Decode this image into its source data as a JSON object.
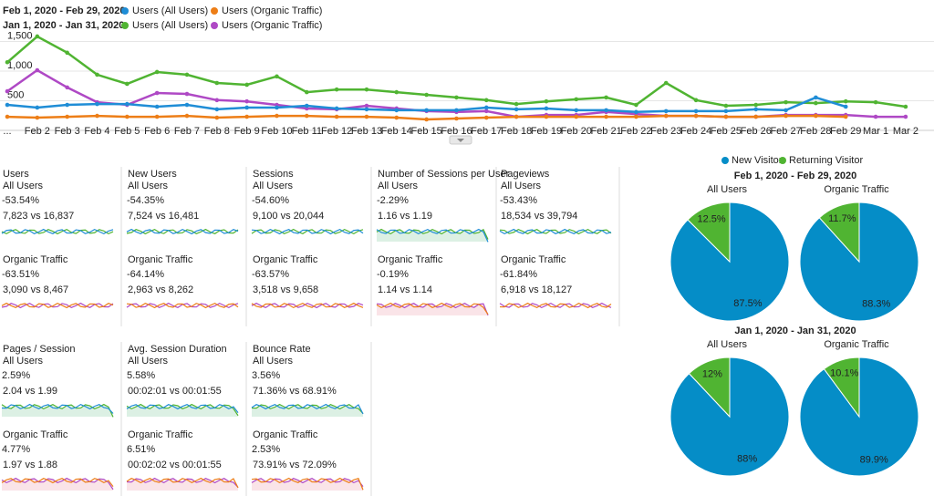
{
  "chart_data": {
    "type": "line",
    "series_groups": [
      {
        "label": "Feb 1, 2020 - Feb 29, 2020:",
        "series": [
          {
            "name": "Users (All Users)",
            "color": "#1f8dd6",
            "values": [
              430,
              385,
              430,
              445,
              445,
              400,
              430,
              355,
              385,
              385,
              415,
              370,
              355,
              340,
              340,
              340,
              385,
              355,
              370,
              340,
              340,
              310,
              325,
              325,
              325,
              355,
              340,
              555,
              400,
              null,
              null
            ]
          },
          {
            "name": "Users (Organic Traffic)",
            "color": "#ed7e17",
            "values": [
              230,
              215,
              230,
              245,
              230,
              230,
              245,
              215,
              230,
              245,
              245,
              230,
              230,
              215,
              185,
              200,
              215,
              230,
              230,
              230,
              230,
              230,
              245,
              245,
              230,
              230,
              245,
              245,
              230,
              null,
              null
            ]
          }
        ]
      },
      {
        "label": "Jan 1, 2020 - Jan 31, 2020:",
        "series": [
          {
            "name": "Users (All Users)",
            "color": "#50b432",
            "values": [
              1150,
              1585,
              1310,
              940,
              785,
              985,
              940,
              800,
              770,
              910,
              645,
              690,
              690,
              645,
              600,
              555,
              510,
              445,
              490,
              525,
              555,
              430,
              800,
              510,
              415,
              430,
              475,
              460,
              490,
              475,
              400
            ]
          },
          {
            "name": "Users (Organic Traffic)",
            "color": "#af49c5",
            "values": [
              660,
              1015,
              725,
              475,
              430,
              630,
              615,
              510,
              490,
              430,
              370,
              355,
              415,
              370,
              325,
              310,
              325,
              230,
              260,
              260,
              310,
              275,
              245,
              245,
              230,
              230,
              260,
              260,
              260,
              230,
              230
            ]
          }
        ]
      }
    ],
    "categories": [
      "...",
      "Feb 2",
      "Feb 3",
      "Feb 4",
      "Feb 5",
      "Feb 6",
      "Feb 7",
      "Feb 8",
      "Feb 9",
      "Feb 10",
      "Feb 11",
      "Feb 12",
      "Feb 13",
      "Feb 14",
      "Feb 15",
      "Feb 16",
      "Feb 17",
      "Feb 18",
      "Feb 19",
      "Feb 20",
      "Feb 21",
      "Feb 22",
      "Feb 23",
      "Feb 24",
      "Feb 25",
      "Feb 26",
      "Feb 27",
      "Feb 28",
      "Feb 29",
      "Mar 1",
      "Mar 2"
    ],
    "ylim": [
      0,
      1700
    ],
    "yticks": [
      500,
      {
        "value": 1000,
        "label": "1,000"
      },
      {
        "value": 1500,
        "label": "1,500"
      }
    ],
    "grid": true
  },
  "metrics": [
    {
      "title": "Users",
      "segments": [
        {
          "label": "All Users",
          "change": "-53.54%",
          "color": "#dd4b39",
          "compare": "7,823 vs 16,837"
        },
        {
          "label": "Organic Traffic",
          "change": "-63.51%",
          "color": "#dd4b39",
          "compare": "3,090 vs 8,467"
        }
      ]
    },
    {
      "title": "New Users",
      "segments": [
        {
          "label": "All Users",
          "change": "-54.35%",
          "color": "#dd4b39",
          "compare": "7,524 vs 16,481"
        },
        {
          "label": "Organic Traffic",
          "change": "-64.14%",
          "color": "#dd4b39",
          "compare": "2,963 vs 8,262"
        }
      ]
    },
    {
      "title": "Sessions",
      "segments": [
        {
          "label": "All Users",
          "change": "-54.60%",
          "color": "#dd4b39",
          "compare": "9,100 vs 20,044"
        },
        {
          "label": "Organic Traffic",
          "change": "-63.57%",
          "color": "#dd4b39",
          "compare": "3,518 vs 9,658"
        }
      ]
    },
    {
      "title": "Number of Sessions per User",
      "segments": [
        {
          "label": "All Users",
          "change": "-2.29%",
          "color": "#dd4b39",
          "compare": "1.16 vs 1.19"
        },
        {
          "label": "Organic Traffic",
          "change": "-0.19%",
          "color": "#dd4b39",
          "compare": "1.14 vs 1.14"
        }
      ]
    },
    {
      "title": "Pageviews",
      "segments": [
        {
          "label": "All Users",
          "change": "-53.43%",
          "color": "#dd4b39",
          "compare": "18,534 vs 39,794"
        },
        {
          "label": "Organic Traffic",
          "change": "-61.84%",
          "color": "#dd4b39",
          "compare": "6,918 vs 18,127"
        }
      ]
    },
    {
      "title": "Pages / Session",
      "segments": [
        {
          "label": "All Users",
          "change": "2.59%",
          "color": "#109618",
          "compare": "2.04 vs 1.99"
        },
        {
          "label": "Organic Traffic",
          "change": "4.77%",
          "color": "#109618",
          "compare": "1.97 vs 1.88"
        }
      ]
    },
    {
      "title": "Avg. Session Duration",
      "segments": [
        {
          "label": "All Users",
          "change": "5.58%",
          "color": "#109618",
          "compare": "00:02:01 vs 00:01:55"
        },
        {
          "label": "Organic Traffic",
          "change": "6.51%",
          "color": "#109618",
          "compare": "00:02:02 vs 00:01:55"
        }
      ]
    },
    {
      "title": "Bounce Rate",
      "segments": [
        {
          "label": "All Users",
          "change": "3.56%",
          "color": "#dd4b39",
          "compare": "71.36% vs 68.91%"
        },
        {
          "label": "Organic Traffic",
          "change": "2.53%",
          "color": "#dd4b39",
          "compare": "73.91% vs 72.09%"
        }
      ]
    }
  ],
  "pies": {
    "type": "pie",
    "legend": [
      {
        "name": "New Visitor",
        "color": "#058dc7"
      },
      {
        "name": "Returning Visitor",
        "color": "#50b432"
      }
    ],
    "groups": [
      {
        "title": "Feb 1, 2020 - Feb 29, 2020",
        "charts": [
          {
            "title": "All Users",
            "values": [
              87.5,
              12.5
            ],
            "value_labels": [
              "87.5%",
              "12.5%"
            ]
          },
          {
            "title": "Organic Traffic",
            "values": [
              88.3,
              11.7
            ],
            "value_labels": [
              "88.3%",
              "11.7%"
            ]
          }
        ]
      },
      {
        "title": "Jan 1, 2020 - Jan 31, 2020",
        "charts": [
          {
            "title": "All Users",
            "values": [
              88,
              12
            ],
            "value_labels": [
              "88%",
              "12%"
            ]
          },
          {
            "title": "Organic Traffic",
            "values": [
              89.9,
              10.1
            ],
            "value_labels": [
              "89.9%",
              "10.1%"
            ]
          }
        ]
      }
    ]
  }
}
